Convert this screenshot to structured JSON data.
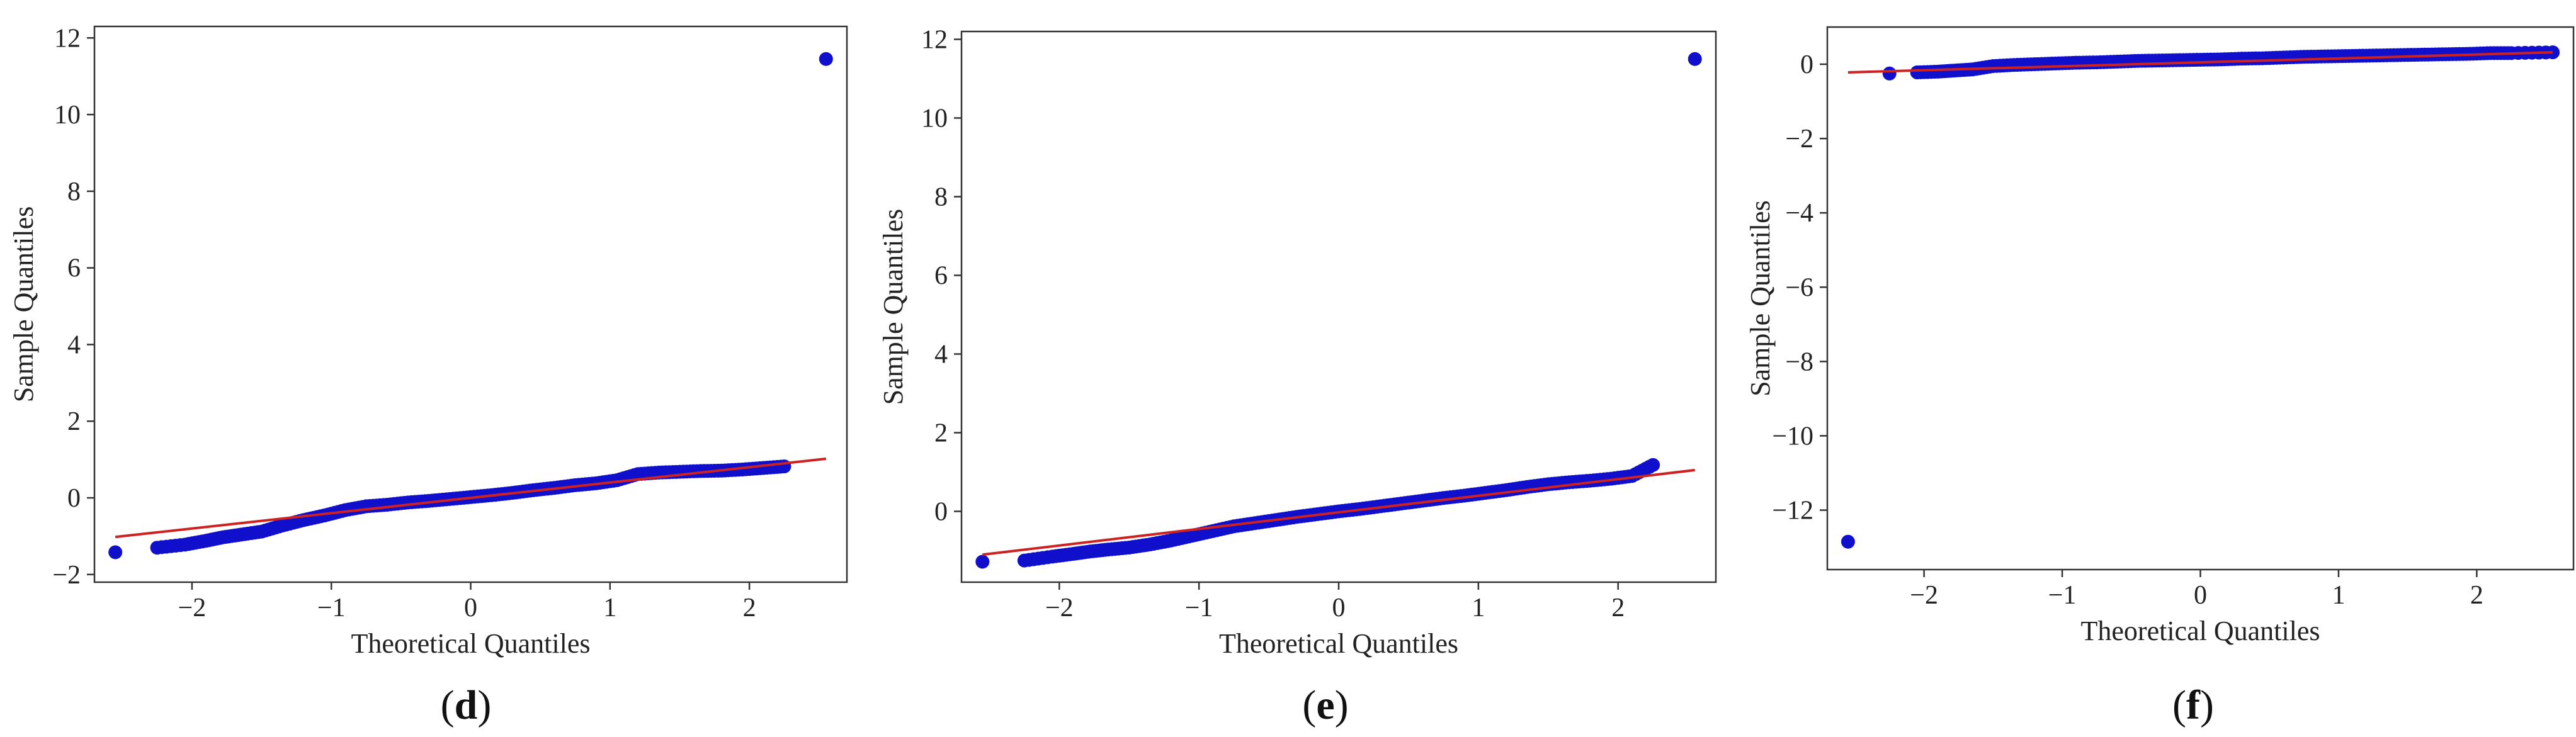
{
  "chart_data": [
    {
      "type": "scatter",
      "panel_label_open": "(",
      "panel_label_letter": "d",
      "panel_label_close": ")",
      "xlabel": "Theoretical Quantiles",
      "ylabel": "Sample Quantiles",
      "xlim": [
        -2.7,
        2.7
      ],
      "ylim": [
        -2.2,
        12.3
      ],
      "xticks": [
        -2,
        -1,
        0,
        1,
        2
      ],
      "yticks": [
        -2,
        0,
        2,
        4,
        6,
        8,
        10,
        12
      ],
      "grid": false,
      "reference_line": {
        "x": [
          -2.55,
          2.55
        ],
        "y": [
          -1.02,
          1.02
        ]
      },
      "points": {
        "x": [
          -2.55,
          -2.25,
          -2.05,
          -1.9,
          -1.78,
          -1.65,
          -1.5,
          -1.35,
          -1.2,
          -1.05,
          -0.9,
          -0.75,
          -0.6,
          -0.45,
          -0.3,
          -0.15,
          0,
          0.15,
          0.3,
          0.45,
          0.6,
          0.75,
          0.9,
          1.05,
          1.2,
          1.35,
          1.5,
          1.65,
          1.8,
          1.95,
          2.1,
          2.25,
          2.55
        ],
        "y": [
          -1.42,
          -1.3,
          -1.22,
          -1.12,
          -1.03,
          -0.96,
          -0.88,
          -0.72,
          -0.58,
          -0.46,
          -0.32,
          -0.22,
          -0.18,
          -0.12,
          -0.08,
          -0.03,
          0.02,
          0.07,
          0.13,
          0.2,
          0.26,
          0.33,
          0.38,
          0.46,
          0.62,
          0.66,
          0.68,
          0.7,
          0.71,
          0.74,
          0.78,
          0.82,
          11.45
        ]
      },
      "colors": {
        "points": "#1010cc",
        "line": "#cc2222"
      }
    },
    {
      "type": "scatter",
      "panel_label_open": "(",
      "panel_label_letter": "e",
      "panel_label_close": ")",
      "xlabel": "Theoretical Quantiles",
      "ylabel": "Sample Quantiles",
      "xlim": [
        -2.7,
        2.7
      ],
      "ylim": [
        -1.8,
        12.2
      ],
      "xticks": [
        -2,
        -1,
        0,
        1,
        2
      ],
      "yticks": [
        0,
        2,
        4,
        6,
        8,
        10,
        12
      ],
      "grid": false,
      "reference_line": {
        "x": [
          -2.55,
          2.55
        ],
        "y": [
          -1.1,
          1.05
        ]
      },
      "points": {
        "x": [
          -2.55,
          -2.25,
          -2.05,
          -1.9,
          -1.78,
          -1.65,
          -1.5,
          -1.35,
          -1.2,
          -1.05,
          -0.9,
          -0.75,
          -0.6,
          -0.45,
          -0.3,
          -0.15,
          0,
          0.15,
          0.3,
          0.45,
          0.6,
          0.75,
          0.9,
          1.05,
          1.2,
          1.35,
          1.5,
          1.65,
          1.8,
          1.95,
          2.1,
          2.25,
          2.55
        ],
        "y": [
          -1.28,
          -1.25,
          -1.15,
          -1.08,
          -1.02,
          -0.97,
          -0.92,
          -0.84,
          -0.74,
          -0.62,
          -0.5,
          -0.38,
          -0.3,
          -0.22,
          -0.14,
          -0.07,
          0.0,
          0.06,
          0.13,
          0.2,
          0.27,
          0.34,
          0.4,
          0.47,
          0.54,
          0.62,
          0.69,
          0.74,
          0.78,
          0.83,
          0.9,
          1.18,
          11.5
        ]
      },
      "colors": {
        "points": "#1010cc",
        "line": "#cc2222"
      }
    },
    {
      "type": "scatter",
      "panel_label_open": "(",
      "panel_label_letter": "f",
      "panel_label_close": ")",
      "xlabel": "Theoretical Quantiles",
      "ylabel": "Sample Quantiles",
      "xlim": [
        -2.7,
        2.7
      ],
      "ylim": [
        -13.6,
        1.0
      ],
      "xticks": [
        -2,
        -1,
        0,
        1,
        2
      ],
      "yticks": [
        -12,
        -10,
        -8,
        -6,
        -4,
        -2,
        0
      ],
      "grid": false,
      "reference_line": {
        "x": [
          -2.55,
          2.55
        ],
        "y": [
          -0.22,
          0.32
        ]
      },
      "points": {
        "x": [
          -2.55,
          -2.25,
          -2.05,
          -1.9,
          -1.78,
          -1.65,
          -1.5,
          -1.35,
          -1.2,
          -1.05,
          -0.9,
          -0.75,
          -0.6,
          -0.45,
          -0.3,
          -0.15,
          0,
          0.15,
          0.3,
          0.45,
          0.6,
          0.75,
          0.9,
          1.05,
          1.2,
          1.35,
          1.5,
          1.65,
          1.8,
          1.95,
          2.1,
          2.25,
          2.55
        ],
        "y": [
          -12.85,
          -0.25,
          -0.22,
          -0.2,
          -0.17,
          -0.14,
          -0.05,
          -0.02,
          0.0,
          0.02,
          0.04,
          0.05,
          0.07,
          0.09,
          0.1,
          0.11,
          0.12,
          0.13,
          0.15,
          0.16,
          0.18,
          0.2,
          0.21,
          0.22,
          0.23,
          0.24,
          0.25,
          0.26,
          0.27,
          0.28,
          0.3,
          0.3,
          0.32
        ]
      },
      "colors": {
        "points": "#1010cc",
        "line": "#cc2222"
      }
    }
  ]
}
